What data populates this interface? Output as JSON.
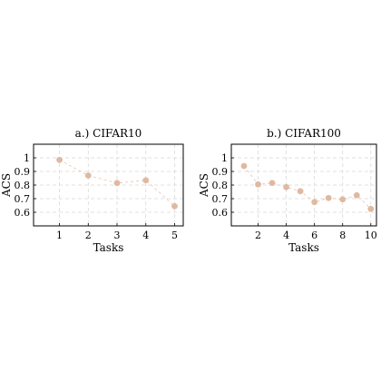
{
  "chart_data": [
    {
      "type": "line",
      "title": "a.) CIFAR10",
      "xlabel": "Tasks",
      "ylabel": "ACS",
      "x": [
        1,
        2,
        3,
        4,
        5
      ],
      "values": [
        0.985,
        0.87,
        0.815,
        0.835,
        0.645
      ],
      "xticks": [
        "1",
        "2",
        "3",
        "4",
        "5"
      ],
      "yticks": [
        "0.6",
        "0.7",
        "0.8",
        "0.9",
        "1"
      ],
      "xlim": [
        0.1,
        5.3
      ],
      "ylim": [
        0.5,
        1.1
      ],
      "grid": true,
      "color": "#dfb9a0"
    },
    {
      "type": "line",
      "title": "b.) CIFAR100",
      "xlabel": "Tasks",
      "ylabel": "ACS",
      "x": [
        1,
        2,
        3,
        4,
        5,
        6,
        7,
        8,
        9,
        10
      ],
      "values": [
        0.94,
        0.805,
        0.815,
        0.785,
        0.755,
        0.675,
        0.705,
        0.695,
        0.725,
        0.625
      ],
      "xticks": [
        "2",
        "4",
        "6",
        "8",
        "10"
      ],
      "yticks": [
        "0.6",
        "0.7",
        "0.8",
        "0.9",
        "1"
      ],
      "xlim": [
        0.1,
        10.4
      ],
      "ylim": [
        0.5,
        1.1
      ],
      "grid": true,
      "color": "#dfb9a0"
    }
  ]
}
